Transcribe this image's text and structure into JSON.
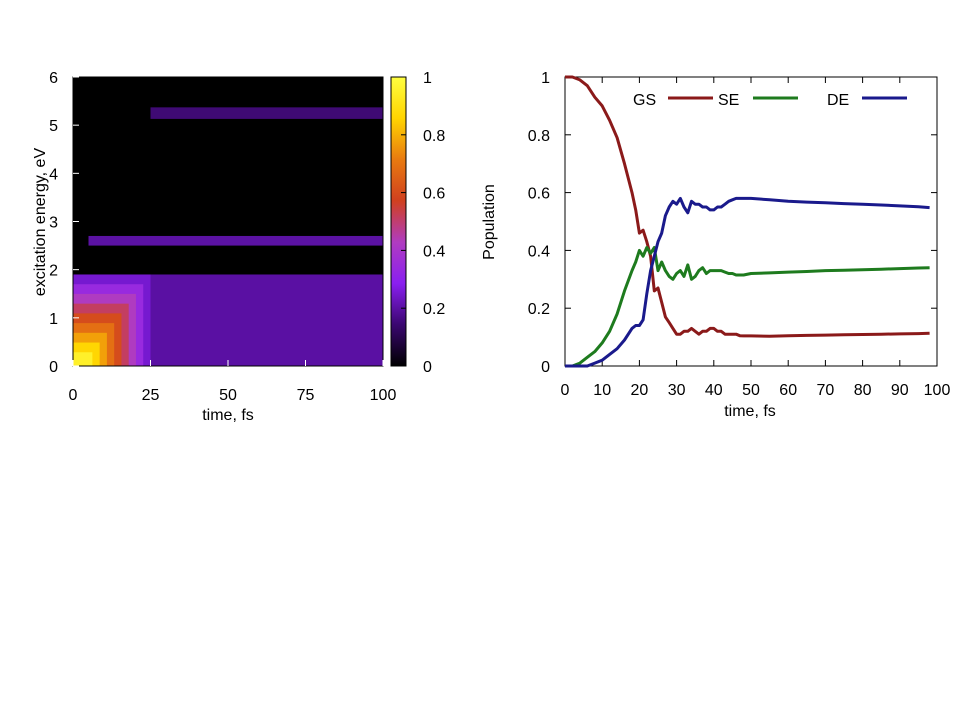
{
  "chart_data": [
    {
      "type": "heatmap",
      "xlabel": "time, fs",
      "ylabel": "excitation energy, eV",
      "xlim": [
        0,
        100
      ],
      "ylim": [
        0,
        6
      ],
      "x_ticks": [
        0,
        25,
        50,
        75,
        100
      ],
      "y_ticks": [
        0,
        1,
        2,
        3,
        4,
        5,
        6
      ],
      "colorbar": {
        "range": [
          0,
          1
        ],
        "ticks": [
          0,
          0.2,
          0.4,
          0.6,
          0.8,
          1
        ],
        "palette": [
          "#000000",
          "#3a0670",
          "#8a1ff0",
          "#b03cc0",
          "#d0401f",
          "#e87a10",
          "#ffd400",
          "#ffff40"
        ]
      },
      "features": [
        {
          "t_start": 0,
          "t_end": 25,
          "e_low": 0,
          "e_high": 1.9,
          "peak_intensity": 0.95,
          "note": "intensity decays from low-energy corner"
        },
        {
          "t_start": 0,
          "t_end": 100,
          "e_low": 0,
          "e_high": 1.9,
          "intensity": 0.2
        },
        {
          "t_start": 5,
          "t_end": 100,
          "e_center": 2.6,
          "intensity": 0.22
        },
        {
          "t_start": 25,
          "t_end": 100,
          "e_center": 5.25,
          "intensity": 0.18
        }
      ]
    },
    {
      "type": "line",
      "xlabel": "time, fs",
      "ylabel": "Population",
      "xlim": [
        0,
        100
      ],
      "ylim": [
        0,
        1
      ],
      "x_ticks": [
        0,
        10,
        20,
        30,
        40,
        50,
        60,
        70,
        80,
        90,
        100
      ],
      "y_ticks": [
        0,
        0.2,
        0.4,
        0.6,
        0.8,
        1
      ],
      "legend_position": "top",
      "x": [
        0,
        2,
        4,
        6,
        8,
        10,
        12,
        14,
        16,
        18,
        19,
        20,
        21,
        22,
        23,
        24,
        25,
        26,
        27,
        28,
        29,
        30,
        31,
        32,
        33,
        34,
        35,
        36,
        37,
        38,
        39,
        40,
        41,
        42,
        43,
        44,
        45,
        46,
        47,
        48,
        50,
        55,
        60,
        65,
        70,
        75,
        80,
        85,
        90,
        95,
        98
      ],
      "series": [
        {
          "name": "GS",
          "color": "#8b1a1a",
          "values": [
            1.0,
            1.0,
            0.99,
            0.97,
            0.93,
            0.9,
            0.85,
            0.79,
            0.7,
            0.6,
            0.54,
            0.46,
            0.47,
            0.43,
            0.38,
            0.26,
            0.27,
            0.22,
            0.17,
            0.15,
            0.13,
            0.11,
            0.11,
            0.12,
            0.12,
            0.13,
            0.12,
            0.11,
            0.12,
            0.12,
            0.13,
            0.13,
            0.12,
            0.12,
            0.11,
            0.11,
            0.11,
            0.11,
            0.105,
            0.104,
            0.104,
            0.103,
            0.105,
            0.106,
            0.107,
            0.108,
            0.109,
            0.11,
            0.111,
            0.112,
            0.113
          ]
        },
        {
          "name": "SE",
          "color": "#1e7b1e",
          "values": [
            0.0,
            0.0,
            0.01,
            0.03,
            0.05,
            0.08,
            0.12,
            0.18,
            0.26,
            0.33,
            0.36,
            0.4,
            0.38,
            0.41,
            0.39,
            0.41,
            0.33,
            0.36,
            0.33,
            0.31,
            0.3,
            0.32,
            0.33,
            0.31,
            0.35,
            0.3,
            0.31,
            0.33,
            0.34,
            0.32,
            0.33,
            0.33,
            0.33,
            0.33,
            0.325,
            0.32,
            0.32,
            0.315,
            0.315,
            0.315,
            0.32,
            0.322,
            0.325,
            0.327,
            0.33,
            0.331,
            0.333,
            0.335,
            0.337,
            0.339,
            0.34
          ]
        },
        {
          "name": "DE",
          "color": "#1a1a8c",
          "values": [
            0.0,
            0.0,
            0.0,
            0.0,
            0.01,
            0.02,
            0.04,
            0.06,
            0.09,
            0.13,
            0.14,
            0.14,
            0.16,
            0.25,
            0.33,
            0.38,
            0.43,
            0.46,
            0.52,
            0.55,
            0.57,
            0.56,
            0.58,
            0.55,
            0.53,
            0.57,
            0.56,
            0.56,
            0.55,
            0.55,
            0.54,
            0.54,
            0.55,
            0.55,
            0.56,
            0.57,
            0.575,
            0.58,
            0.58,
            0.58,
            0.58,
            0.575,
            0.57,
            0.567,
            0.565,
            0.562,
            0.56,
            0.557,
            0.554,
            0.551,
            0.548
          ]
        }
      ]
    }
  ]
}
